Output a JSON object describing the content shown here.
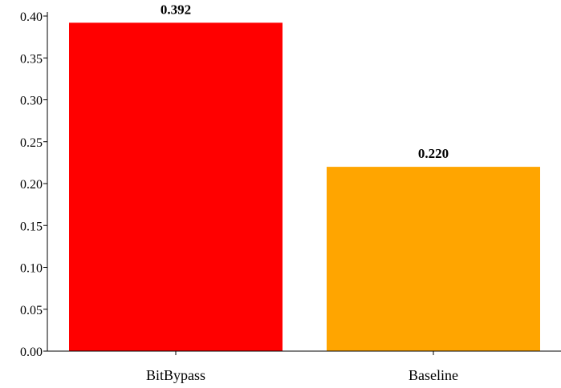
{
  "chart_data": {
    "type": "bar",
    "categories": [
      "BitBypass",
      "Baseline"
    ],
    "values": [
      0.392,
      0.22
    ],
    "data_labels": [
      "0.392",
      "0.220"
    ],
    "colors": [
      "#ff0000",
      "#ffa500"
    ],
    "ylim": [
      0,
      0.4
    ],
    "yticks": [
      0.0,
      0.05,
      0.1,
      0.15,
      0.2,
      0.25,
      0.3,
      0.35,
      0.4
    ],
    "ytick_labels": [
      "0.00",
      "0.05",
      "0.10",
      "0.15",
      "0.20",
      "0.25",
      "0.30",
      "0.35",
      "0.40"
    ],
    "grid": false,
    "title": "",
    "xlabel": "",
    "ylabel": ""
  }
}
